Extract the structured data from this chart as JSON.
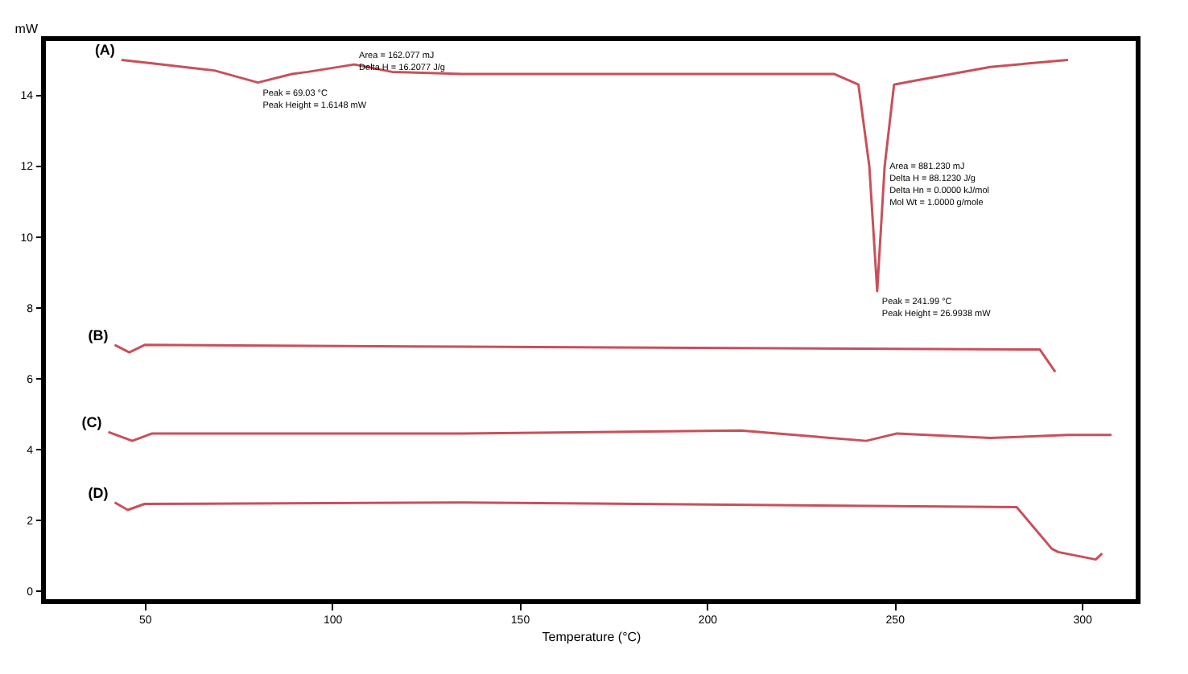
{
  "chart_data": {
    "type": "line",
    "xlabel": "Temperature (°C)",
    "ylabel": "mW",
    "xlim": [
      23,
      315
    ],
    "xticks": [
      50,
      100,
      150,
      200,
      250,
      300
    ],
    "ylim": [
      -0.3,
      15.6
    ],
    "yticks": [
      0,
      2,
      4,
      6,
      8,
      10,
      12,
      14
    ],
    "grid": false,
    "marker": "none",
    "line_style": "solid",
    "series": [
      {
        "color": "#c8505a",
        "x": [
          43.8,
          52,
          68.6,
          80.2,
          89.3,
          93.5,
          105.9,
          116,
          134.8,
          176,
          234,
          240.4,
          243.3,
          245.4,
          247.4,
          249.9,
          254.9,
          275.6,
          296.3
        ],
        "values": [
          15.0,
          14.9,
          14.7,
          14.36,
          14.6,
          14.66,
          14.87,
          14.66,
          14.6,
          14.6,
          14.6,
          14.3,
          12.0,
          8.47,
          12.0,
          14.3,
          14.4,
          14.8,
          15.0
        ]
      },
      {
        "color": "#c8505a",
        "x": [
          42,
          45.9,
          50,
          134.8,
          288.8,
          292.9
        ],
        "values": [
          6.95,
          6.74,
          6.95,
          6.9,
          6.82,
          6.19
        ]
      },
      {
        "color": "#c8505a",
        "x": [
          40.3,
          46.7,
          52,
          134.8,
          209,
          242.5,
          250.7,
          275.6,
          296.3,
          307.9
        ],
        "values": [
          4.49,
          4.24,
          4.45,
          4.45,
          4.53,
          4.24,
          4.45,
          4.32,
          4.41,
          4.41
        ]
      },
      {
        "color": "#c8505a",
        "x": [
          42,
          45.5,
          50,
          134.8,
          282.6,
          292,
          293.7,
          303.7,
          305.4
        ],
        "values": [
          2.5,
          2.29,
          2.46,
          2.5,
          2.37,
          1.19,
          1.1,
          0.89,
          1.06
        ]
      }
    ],
    "annotations": [
      "(A)",
      "(B)",
      "(C)",
      "(D)",
      {
        "text": "Area = 162.077 mJ\nDelta H = 16.2077 J/g",
        "x": 105.9,
        "y": 14.87
      },
      {
        "text": "Peak = 69.03 °C\nPeak Height = 1.6148 mW",
        "x": 80.2,
        "y": 14.36
      },
      {
        "text": "Area = 881.230 mJ\nDelta H = 88.1230 J/g\nDelta Hn = 0.0000 kJ/mol\nMol Wt = 1.0000 g/mole",
        "x": 247.4,
        "y": 12.0
      },
      {
        "text": "Peak = 241.99 °C\nPeak Height = 26.9938 mW",
        "x": 245.4,
        "y": 8.47
      }
    ]
  }
}
